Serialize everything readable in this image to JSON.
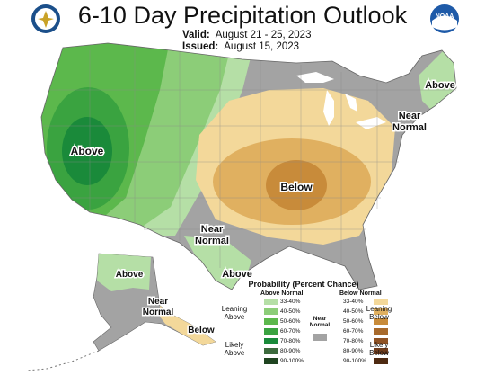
{
  "title": "6-10 Day Precipitation Outlook",
  "valid_label": "Valid:",
  "valid_dates": "August 21 - 25, 2023",
  "issued_label": "Issued:",
  "issued_date": "August 15, 2023",
  "logos": [
    "commerce-department-seal",
    "noaa-logo"
  ],
  "noaa_text": "NOAA",
  "map_labels": {
    "above_west": "Above",
    "below_central": "Below",
    "above_northeast": "Above",
    "near_normal_northeast": "Near\nNormal",
    "near_normal_south": "Near\nNormal",
    "above_gulf": "Above",
    "above_alaska": "Above",
    "near_normal_alaska": "Near\nNormal",
    "below_alaska": "Below"
  },
  "legend": {
    "title": "Probability (Percent Chance)",
    "above_header": "Above Normal",
    "below_header": "Below Normal",
    "near_label": "Near\nNormal",
    "leaning_above": "Leaning\nAbove",
    "likely_above": "Likely\nAbove",
    "leaning_below": "Leaning\nBelow",
    "likely_below": "Likely\nBelow",
    "ranges": [
      "33-40%",
      "40-50%",
      "50-60%",
      "60-70%",
      "70-80%",
      "80-90%",
      "90-100%"
    ],
    "above_colors": [
      "#b5dfa6",
      "#8ccd78",
      "#5cb84c",
      "#3aa340",
      "#1a8a3a",
      "#3d6b3e",
      "#1f4420"
    ],
    "below_colors": [
      "#f3d89a",
      "#e0b060",
      "#c88b3a",
      "#a86a2c",
      "#8e5224",
      "#6e3c1c",
      "#4e2a12"
    ],
    "near_color": "#a3a3a3"
  }
}
